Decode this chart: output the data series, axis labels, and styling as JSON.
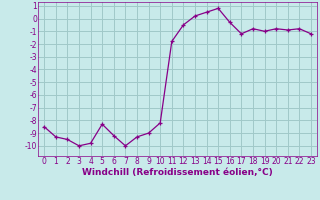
{
  "x": [
    0,
    1,
    2,
    3,
    4,
    5,
    6,
    7,
    8,
    9,
    10,
    11,
    12,
    13,
    14,
    15,
    16,
    17,
    18,
    19,
    20,
    21,
    22,
    23
  ],
  "y": [
    -8.5,
    -9.3,
    -9.5,
    -10.0,
    -9.8,
    -8.3,
    -9.2,
    -10.0,
    -9.3,
    -9.0,
    -8.2,
    -1.8,
    -0.5,
    0.2,
    0.5,
    0.8,
    -0.3,
    -1.2,
    -0.8,
    -1.0,
    -0.8,
    -0.9,
    -0.8,
    -1.2
  ],
  "line_color": "#880088",
  "marker": "+",
  "bg_color": "#c8eaea",
  "grid_color": "#a0c8c8",
  "xlabel": "Windchill (Refroidissement éolien,°C)",
  "ylim": [
    -10.8,
    1.3
  ],
  "xlim": [
    -0.5,
    23.5
  ],
  "xticks": [
    0,
    1,
    2,
    3,
    4,
    5,
    6,
    7,
    8,
    9,
    10,
    11,
    12,
    13,
    14,
    15,
    16,
    17,
    18,
    19,
    20,
    21,
    22,
    23
  ],
  "yticks": [
    1,
    0,
    -1,
    -2,
    -3,
    -4,
    -5,
    -6,
    -7,
    -8,
    -9,
    -10
  ],
  "xlabel_fontsize": 6.5,
  "tick_fontsize": 5.5
}
